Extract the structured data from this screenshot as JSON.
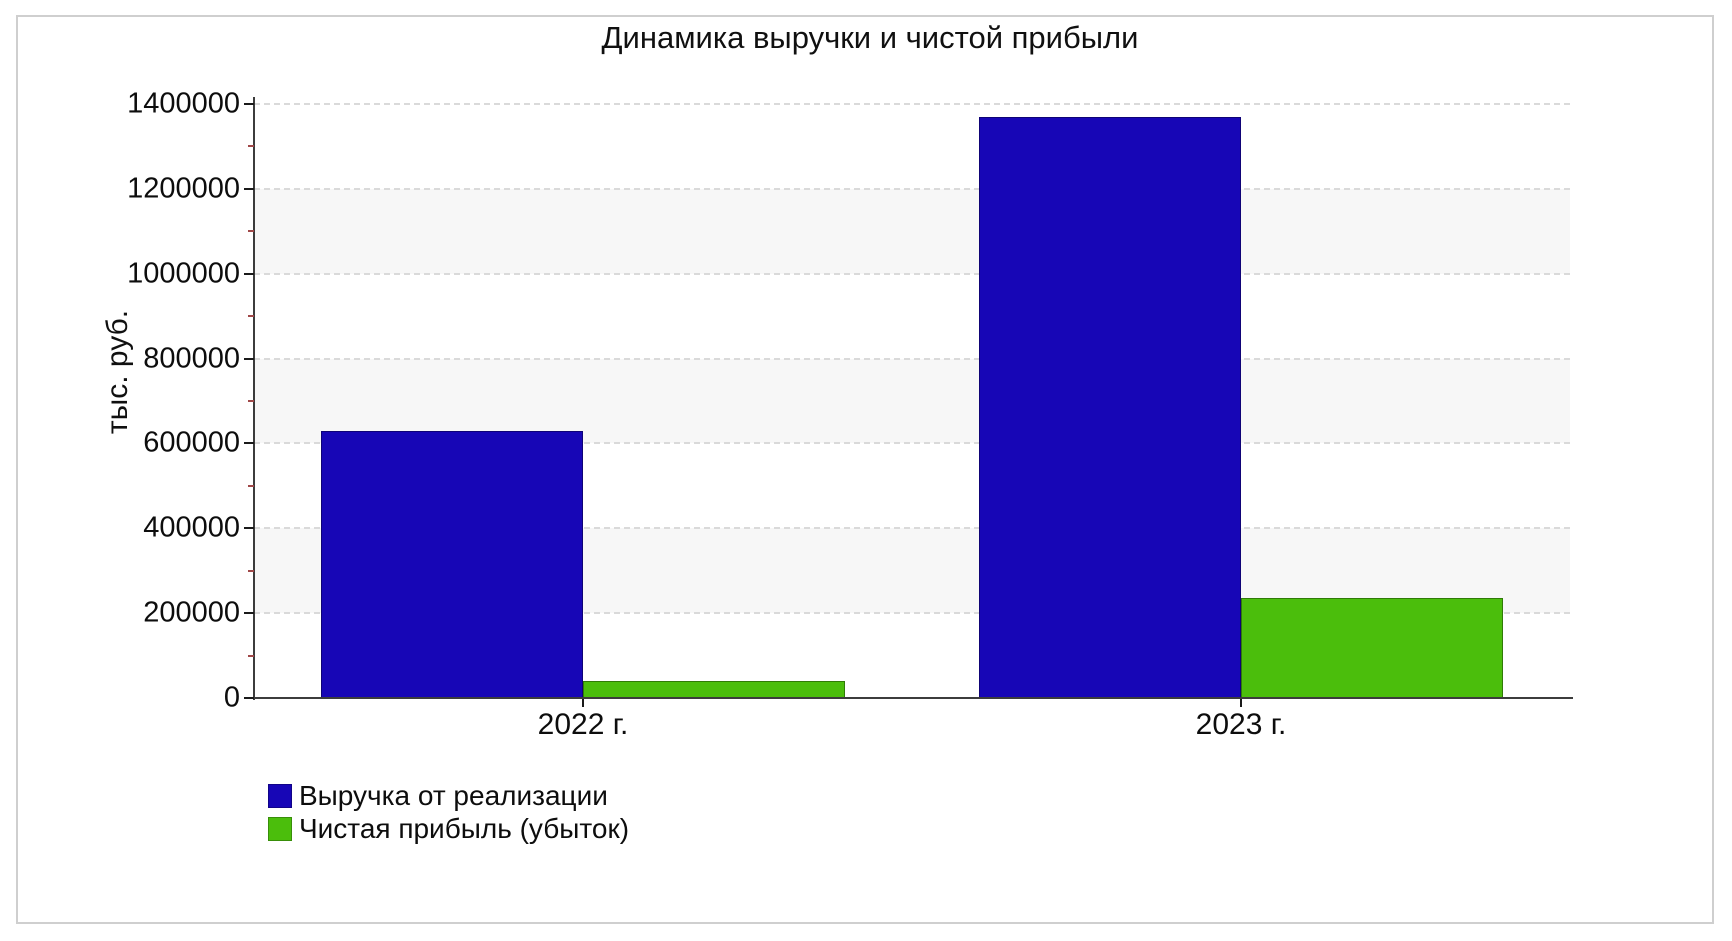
{
  "canvas": {
    "background": "#ffffff",
    "border_color": "#cfcfcf"
  },
  "chart_data": {
    "type": "bar",
    "title": "Динамика выручки и чистой прибыли",
    "ylabel": "тыс. руб.",
    "xlabel": "",
    "categories": [
      "2022 г.",
      "2023 г."
    ],
    "series": [
      {
        "name": "Выручка от реализации",
        "color": "#1706b6",
        "values": [
          630000,
          1370000
        ]
      },
      {
        "name": "Чистая прибыль (убыток)",
        "color": "#4bbe0c",
        "values": [
          40000,
          235000
        ]
      }
    ],
    "ylim": [
      0,
      1400000
    ],
    "y_tick_step": 200000,
    "y_minor_tick_step": 100000,
    "y_ticks": [
      "0",
      "200000",
      "400000",
      "600000",
      "800000",
      "1000000",
      "1200000",
      "1400000"
    ],
    "grid": {
      "gridlines": "dashed",
      "gridline_color": "#dadada",
      "band_color": "#f7f7f7",
      "axis_color": "#3c3c3c",
      "major_tick_color": "#1a1a1a",
      "minor_tick_color": "#a04848"
    },
    "legend_position": "bottom-left"
  }
}
